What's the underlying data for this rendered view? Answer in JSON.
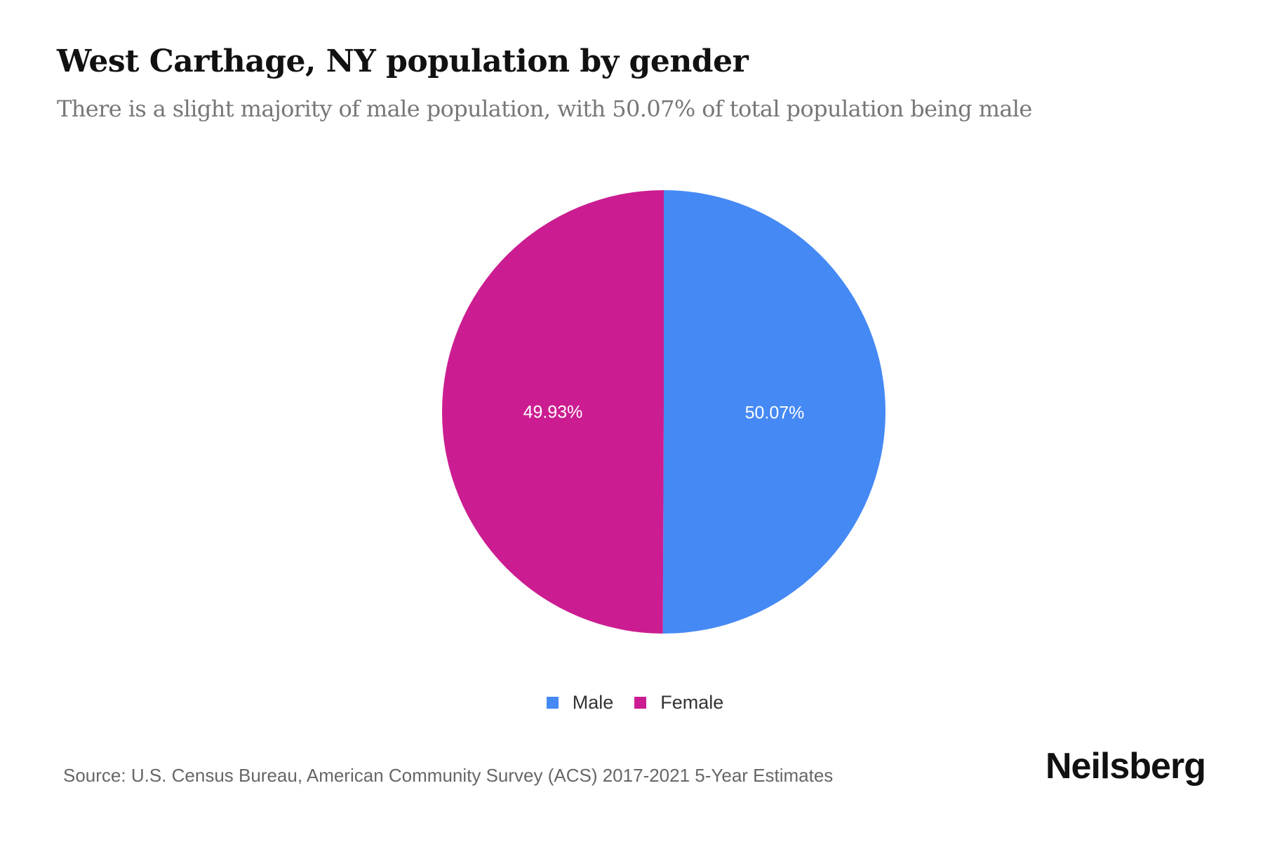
{
  "chart_data": {
    "type": "pie",
    "title": "West Carthage, NY population by gender",
    "subtitle": "There is a slight majority of male population, with 50.07% of total population being male",
    "categories": [
      "Male",
      "Female"
    ],
    "values": [
      50.07,
      49.93
    ],
    "labels": [
      "50.07%",
      "49.93%"
    ],
    "colors": [
      "#4589F5",
      "#CB1D91"
    ],
    "legend": [
      "Male",
      "Female"
    ],
    "legend_position": "bottom"
  },
  "footer": {
    "source": "Source: U.S. Census Bureau, American Community Survey (ACS) 2017-2021 5-Year Estimates",
    "brand": "Neilsberg"
  }
}
